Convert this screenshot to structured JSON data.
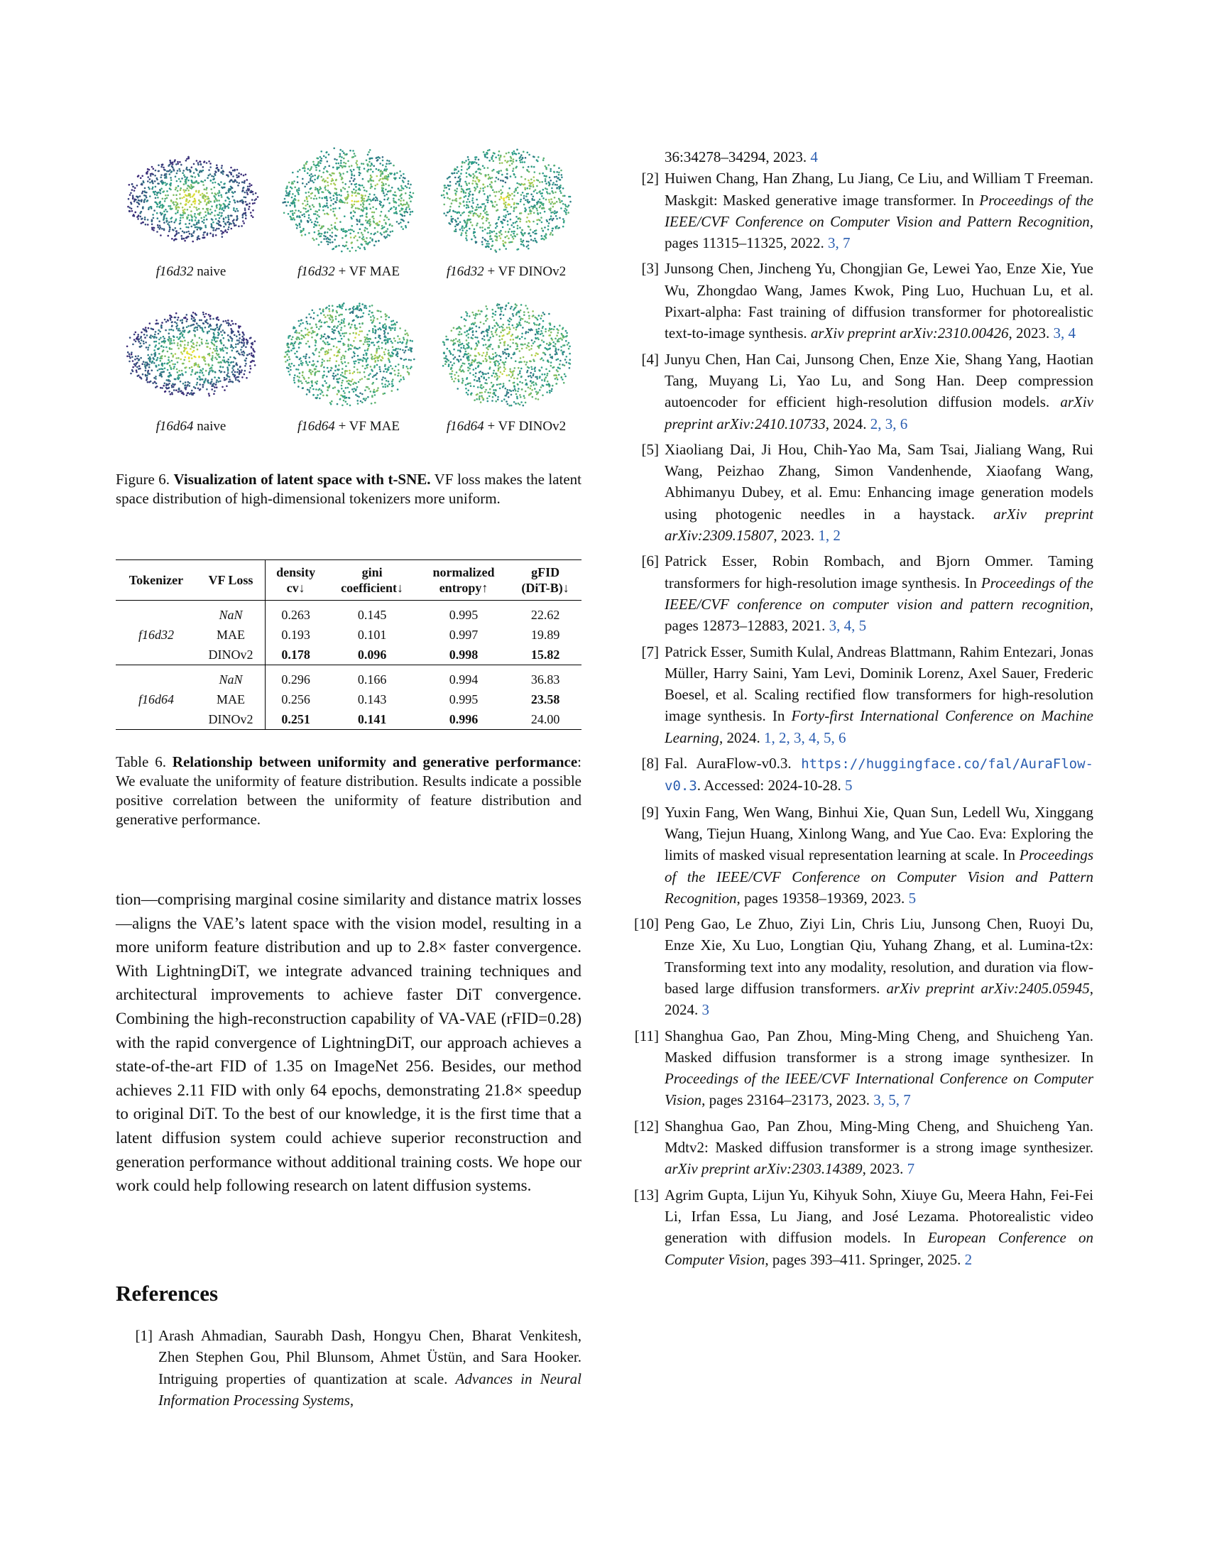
{
  "figure6": {
    "panels": [
      {
        "label_italic": "f16d32",
        "label_rest": " naive"
      },
      {
        "label_italic": "f16d32",
        "label_rest": " + VF MAE"
      },
      {
        "label_italic": "f16d32",
        "label_rest": " + VF DINOv2"
      },
      {
        "label_italic": "f16d64",
        "label_rest": " naive"
      },
      {
        "label_italic": "f16d64",
        "label_rest": " + VF MAE"
      },
      {
        "label_italic": "f16d64",
        "label_rest": " + VF DINOv2"
      }
    ],
    "caption_prefix": "Figure 6. ",
    "caption_bold": "Visualization of latent space with t-SNE.",
    "caption_rest": " VF loss makes the latent space distribution of high-dimensional tokenizers more uniform."
  },
  "table6": {
    "headers": {
      "tokenizer": "Tokenizer",
      "vf_loss": "VF Loss",
      "density_1": "density",
      "density_2": "cv↓",
      "gini_1": "gini",
      "gini_2": "coefficient↓",
      "entropy_1": "normalized",
      "entropy_2": "entropy↑",
      "gfid_1": "gFID",
      "gfid_2": "(DiT-B)↓"
    },
    "groups": [
      {
        "tokenizer": "f16d32",
        "rows": [
          {
            "loss": "NaN",
            "cv": "0.263",
            "gini": "0.145",
            "entropy": "0.995",
            "gfid": "22.62"
          },
          {
            "loss": "MAE",
            "cv": "0.193",
            "gini": "0.101",
            "entropy": "0.997",
            "gfid": "19.89"
          },
          {
            "loss": "DINOv2",
            "cv": "0.178",
            "gini": "0.096",
            "entropy": "0.998",
            "gfid": "15.82"
          }
        ]
      },
      {
        "tokenizer": "f16d64",
        "rows": [
          {
            "loss": "NaN",
            "cv": "0.296",
            "gini": "0.166",
            "entropy": "0.994",
            "gfid": "36.83"
          },
          {
            "loss": "MAE",
            "cv": "0.256",
            "gini": "0.143",
            "entropy": "0.995",
            "gfid": "23.58"
          },
          {
            "loss": "DINOv2",
            "cv": "0.251",
            "gini": "0.141",
            "entropy": "0.996",
            "gfid": "24.00"
          }
        ]
      }
    ],
    "caption_prefix": "Table 6. ",
    "caption_bold": "Relationship between uniformity and generative performance",
    "caption_rest": ": We evaluate the uniformity of feature distribution. Results indicate a possible positive correlation between the uniformity of feature distribution and generative performance."
  },
  "body_paragraph": "tion—comprising marginal cosine similarity and distance matrix losses—aligns the VAE’s latent space with the vision model, resulting in a more uniform feature distribution and up to 2.8× faster convergence. With LightningDiT, we integrate advanced training techniques and architectural improvements to achieve faster DiT convergence. Combining the high-reconstruction capability of VA-VAE (rFID=0.28) with the rapid convergence of LightningDiT, our approach achieves a state-of-the-art FID of 1.35 on ImageNet 256. Besides, our method achieves 2.11 FID with only 64 epochs, demonstrating 21.8× speedup to original DiT. To the best of our knowledge, it is the first time that a latent diffusion system could achieve superior reconstruction and generation performance without additional training costs. We hope our work could help following research on latent diffusion systems.",
  "references_heading": "References",
  "ref1": {
    "num": "[1]",
    "authors": "Arash Ahmadian, Saurabh Dash, Hongyu Chen, Bharat Venkitesh, Zhen Stephen Gou, Phil Blunsom, Ahmet Üstün, and Sara Hooker. Intriguing properties of quantization at scale. ",
    "venue": "Advances in Neural Information Processing Systems",
    "tail": ",",
    "continuation": "36:34278–34294, 2023. ",
    "cites": "4"
  },
  "refs": [
    {
      "num": "[2]",
      "text": "Huiwen Chang, Han Zhang, Lu Jiang, Ce Liu, and William T Freeman. Maskgit: Masked generative image transformer. In ",
      "venue": "Proceedings of the IEEE/CVF Conference on Computer Vision and Pattern Recognition",
      "tail": ", pages 11315–11325, 2022. ",
      "cites": "3, 7"
    },
    {
      "num": "[3]",
      "text": "Junsong Chen, Jincheng Yu, Chongjian Ge, Lewei Yao, Enze Xie, Yue Wu, Zhongdao Wang, James Kwok, Ping Luo, Huchuan Lu, et al. Pixart-alpha: Fast training of diffusion transformer for photorealistic text-to-image synthesis. ",
      "venue": "arXiv preprint arXiv:2310.00426",
      "tail": ", 2023. ",
      "cites": "3, 4"
    },
    {
      "num": "[4]",
      "text": "Junyu Chen, Han Cai, Junsong Chen, Enze Xie, Shang Yang, Haotian Tang, Muyang Li, Yao Lu, and Song Han. Deep compression autoencoder for efficient high-resolution diffusion models. ",
      "venue": "arXiv preprint arXiv:2410.10733",
      "tail": ", 2024. ",
      "cites": "2, 3, 6"
    },
    {
      "num": "[5]",
      "text": "Xiaoliang Dai, Ji Hou, Chih-Yao Ma, Sam Tsai, Jialiang Wang, Rui Wang, Peizhao Zhang, Simon Vandenhende, Xiaofang Wang, Abhimanyu Dubey, et al. Emu: Enhancing image generation models using photogenic needles in a haystack. ",
      "venue": "arXiv preprint arXiv:2309.15807",
      "tail": ", 2023. ",
      "cites": "1, 2"
    },
    {
      "num": "[6]",
      "text": "Patrick Esser, Robin Rombach, and Bjorn Ommer. Taming transformers for high-resolution image synthesis. In ",
      "venue": "Proceedings of the IEEE/CVF conference on computer vision and pattern recognition",
      "tail": ", pages 12873–12883, 2021. ",
      "cites": "3, 4, 5"
    },
    {
      "num": "[7]",
      "text": "Patrick Esser, Sumith Kulal, Andreas Blattmann, Rahim Entezari, Jonas Müller, Harry Saini, Yam Levi, Dominik Lorenz, Axel Sauer, Frederic Boesel, et al. Scaling rectified flow transformers for high-resolution image synthesis. In ",
      "venue": "Forty-first International Conference on Machine Learning",
      "tail": ", 2024. ",
      "cites": "1, 2, 3, 4, 5, 6"
    },
    {
      "num": "[8]",
      "text": "Fal. AuraFlow-v0.3. ",
      "url": "https://huggingface.co/fal/AuraFlow-v0.3",
      "tail": ". Accessed: 2024-10-28. ",
      "cites": "5"
    },
    {
      "num": "[9]",
      "text": "Yuxin Fang, Wen Wang, Binhui Xie, Quan Sun, Ledell Wu, Xinggang Wang, Tiejun Huang, Xinlong Wang, and Yue Cao. Eva: Exploring the limits of masked visual representation learning at scale. In ",
      "venue": "Proceedings of the IEEE/CVF Conference on Computer Vision and Pattern Recognition",
      "tail": ", pages 19358–19369, 2023. ",
      "cites": "5"
    },
    {
      "num": "[10]",
      "text": "Peng Gao, Le Zhuo, Ziyi Lin, Chris Liu, Junsong Chen, Ruoyi Du, Enze Xie, Xu Luo, Longtian Qiu, Yuhang Zhang, et al. Lumina-t2x: Transforming text into any modality, resolution, and duration via flow-based large diffusion transformers. ",
      "venue": "arXiv preprint arXiv:2405.05945",
      "tail": ", 2024. ",
      "cites": "3"
    },
    {
      "num": "[11]",
      "text": "Shanghua Gao, Pan Zhou, Ming-Ming Cheng, and Shuicheng Yan. Masked diffusion transformer is a strong image synthesizer. In ",
      "venue": "Proceedings of the IEEE/CVF International Conference on Computer Vision",
      "tail": ", pages 23164–23173, 2023. ",
      "cites": "3, 5, 7"
    },
    {
      "num": "[12]",
      "text": "Shanghua Gao, Pan Zhou, Ming-Ming Cheng, and Shuicheng Yan. Mdtv2: Masked diffusion transformer is a strong image synthesizer. ",
      "venue": "arXiv preprint arXiv:2303.14389",
      "tail": ", 2023. ",
      "cites": "7"
    },
    {
      "num": "[13]",
      "text": "Agrim Gupta, Lijun Yu, Kihyuk Sohn, Xiuye Gu, Meera Hahn, Fei-Fei Li, Irfan Essa, Lu Jiang, and José Lezama. Photorealistic video generation with diffusion models. In ",
      "venue": "European Conference on Computer Vision",
      "tail": ", pages 393–411. Springer, 2025. ",
      "cites": "2"
    }
  ],
  "colors": {
    "link": "#2a5db0",
    "tsne_low": "#3b2a78",
    "tsne_mid": "#2aa08a",
    "tsne_high": "#f5e52a"
  }
}
